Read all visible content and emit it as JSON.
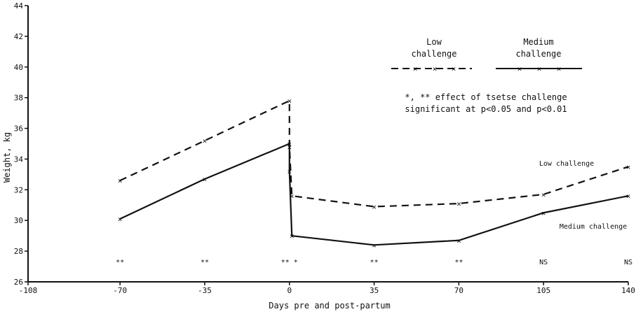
{
  "chart_data": {
    "type": "line",
    "xlabel": "Days pre and post-partum",
    "ylabel": "Weight, kg",
    "xlim": [
      -108,
      140
    ],
    "ylim": [
      26,
      44
    ],
    "x_ticks": [
      -108,
      -70,
      -35,
      0,
      35,
      70,
      105,
      140
    ],
    "y_ticks": [
      26,
      28,
      30,
      32,
      34,
      36,
      38,
      40,
      42,
      44
    ],
    "grid": false,
    "series": [
      {
        "name": "Low challenge",
        "style": "dashed",
        "color": "#111111",
        "x": [
          -70,
          -35,
          0,
          0,
          1,
          35,
          70,
          105,
          140
        ],
        "y": [
          32.6,
          35.2,
          37.8,
          34.8,
          31.6,
          30.9,
          31.1,
          31.7,
          33.5
        ]
      },
      {
        "name": "Medium challenge",
        "style": "solid",
        "color": "#111111",
        "x": [
          -70,
          -35,
          0,
          0,
          1,
          35,
          70,
          105,
          140
        ],
        "y": [
          30.1,
          32.7,
          35.0,
          33.2,
          29.0,
          28.4,
          28.7,
          30.5,
          31.6
        ]
      }
    ],
    "significance": [
      {
        "x": -70,
        "label": "**"
      },
      {
        "x": -35,
        "label": "**"
      },
      {
        "x": 0,
        "label": "** *"
      },
      {
        "x": 35,
        "label": "**"
      },
      {
        "x": 70,
        "label": "**"
      },
      {
        "x": 105,
        "label": "NS"
      },
      {
        "x": 140,
        "label": "NS"
      }
    ],
    "legend": {
      "position": "top-right",
      "low_title_1": "Low",
      "low_title_2": "challenge",
      "medium_title_1": "Medium",
      "medium_title_2": "challenge"
    },
    "annotations": {
      "note_1": "*, ** effect of tsetse challenge",
      "note_2": "significant at p<0.05 and p<0.01",
      "low_label": "Low challenge",
      "medium_label": "Medium challenge"
    }
  }
}
